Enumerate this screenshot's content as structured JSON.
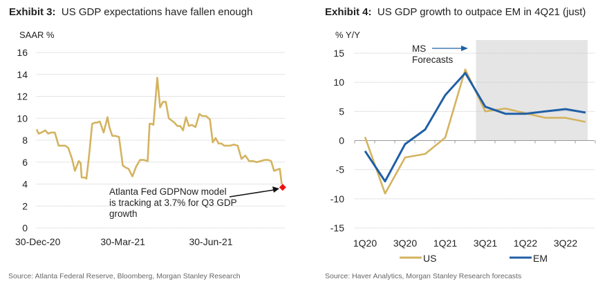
{
  "chart_data": [
    {
      "type": "line",
      "exhibit_label": "Exhibit 3:",
      "title": "US GDP expectations have fallen enough",
      "ylabel": "SAAR %",
      "xlabel": "",
      "ylim": [
        0,
        16
      ],
      "yticks": [
        0,
        2,
        4,
        6,
        8,
        10,
        12,
        14,
        16
      ],
      "xtick_labels": [
        "30-Dec-20",
        "30-Mar-21",
        "30-Jun-21"
      ],
      "grid": true,
      "x_range_days": [
        0,
        260
      ],
      "xtick_days": [
        0,
        90,
        182
      ],
      "series": [
        {
          "name": "Atlanta Fed GDPNow",
          "color": "#D4B35F",
          "x_days": [
            0,
            2,
            5,
            9,
            12,
            15,
            19,
            23,
            26,
            30,
            33,
            37,
            40,
            44,
            46,
            47,
            50,
            52,
            55,
            58,
            61,
            63,
            66,
            70,
            74,
            76,
            79,
            82,
            86,
            90,
            93,
            96,
            100,
            104,
            108,
            112,
            116,
            118,
            120,
            122,
            126,
            129,
            132,
            135,
            138,
            141,
            144,
            147,
            150,
            153,
            156,
            159,
            162,
            166,
            170,
            173,
            177,
            181,
            184,
            187,
            190,
            193,
            196,
            199,
            202,
            206,
            210,
            214,
            218,
            222,
            226,
            230,
            234,
            238,
            242,
            245,
            248,
            251,
            254,
            256
          ],
          "values": [
            9.0,
            8.6,
            8.7,
            8.9,
            8.6,
            8.7,
            8.7,
            7.5,
            7.5,
            7.5,
            7.3,
            6.3,
            5.2,
            6.1,
            5.9,
            4.6,
            4.6,
            4.5,
            6.8,
            9.5,
            9.6,
            9.6,
            9.7,
            8.7,
            10.1,
            9.2,
            8.4,
            8.4,
            8.3,
            5.7,
            5.5,
            5.4,
            4.7,
            5.6,
            6.2,
            6.2,
            6.1,
            9.5,
            9.5,
            9.4,
            13.7,
            11.0,
            11.5,
            11.5,
            10.0,
            9.8,
            9.6,
            9.3,
            9.3,
            8.9,
            10.1,
            9.3,
            9.4,
            9.2,
            10.4,
            10.2,
            10.2,
            9.9,
            7.8,
            8.2,
            7.7,
            7.7,
            7.5,
            7.5,
            7.5,
            7.6,
            7.5,
            6.3,
            6.6,
            6.1,
            6.1,
            6.0,
            6.1,
            6.2,
            6.2,
            6.1,
            5.2,
            5.3,
            5.4,
            4.0
          ]
        },
        {
          "name": "Latest GDPNow estimate",
          "color": "#EE1111",
          "marker": "diamond",
          "x_days": [
            257
          ],
          "values": [
            3.7
          ]
        }
      ],
      "annotation": {
        "lines": [
          "Atlanta Fed GDPNow model",
          "is tracking at 3.7% for Q3 GDP",
          "growth"
        ]
      },
      "source": "Source: Atlanta Federal Reserve, Bloomberg, Morgan Stanley Research"
    },
    {
      "type": "line",
      "exhibit_label": "Exhibit 4:",
      "title": "US GDP growth to outpace EM in 4Q21 (just)",
      "ylabel": "% Y/Y",
      "xlabel": "",
      "ylim": [
        -15,
        15
      ],
      "yticks": [
        -15,
        -10,
        -5,
        0,
        5,
        10,
        15
      ],
      "categories": [
        "1Q20",
        "2Q20",
        "3Q20",
        "4Q20",
        "1Q21",
        "2Q21",
        "3Q21",
        "4Q21",
        "1Q22",
        "2Q22",
        "3Q22",
        "4Q22"
      ],
      "xtick_labels": [
        "1Q20",
        "3Q20",
        "1Q21",
        "3Q21",
        "1Q22",
        "3Q22"
      ],
      "grid": true,
      "forecast_region": {
        "from_category": "3Q21",
        "to_category": "4Q22",
        "label_lines": [
          "MS",
          "Forecasts"
        ],
        "color": "#DCDCDC"
      },
      "series": [
        {
          "name": "US",
          "color": "#D4B35F",
          "values": [
            0.6,
            -9.1,
            -2.9,
            -2.3,
            0.5,
            12.2,
            5.0,
            5.5,
            4.7,
            3.9,
            3.9,
            3.2
          ]
        },
        {
          "name": "EM",
          "color": "#1F5FA6",
          "values": [
            -1.8,
            -7.0,
            -0.6,
            1.9,
            7.8,
            11.6,
            5.8,
            4.6,
            4.6,
            5.0,
            5.4,
            4.8
          ]
        }
      ],
      "legend_position": "bottom",
      "source": "Source: Haver Analytics, Morgan Stanley Research forecasts"
    }
  ]
}
